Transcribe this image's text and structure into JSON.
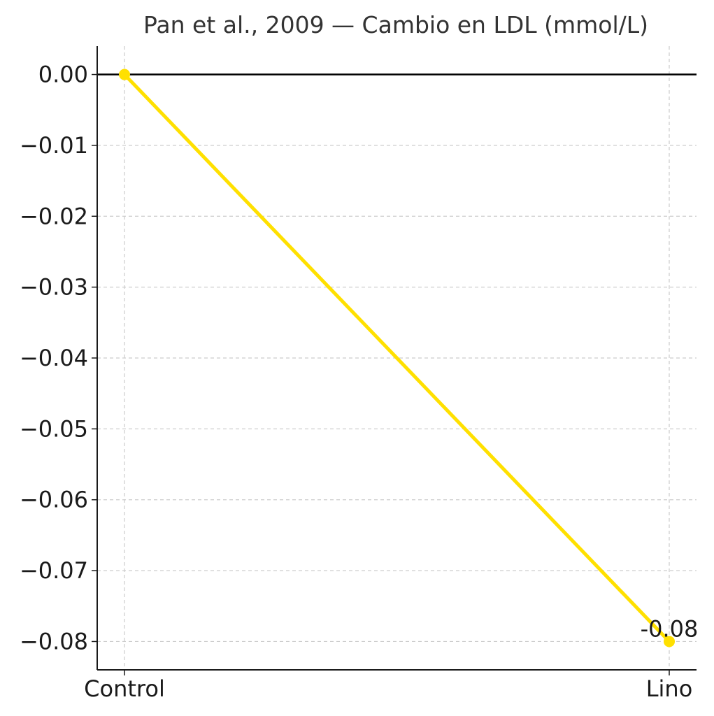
{
  "chart_data": {
    "type": "line",
    "title": "Pan et al., 2009 — Cambio en LDL (mmol/L)",
    "xlabel": "",
    "ylabel": "",
    "categories": [
      "Control",
      "Lino"
    ],
    "series": [
      {
        "values": [
          0.0,
          -0.08
        ],
        "color": "#FFE000"
      }
    ],
    "data_labels": [
      {
        "index": 1,
        "text": "-0.08"
      }
    ],
    "ylim": [
      -0.084,
      0.004
    ],
    "yticks": [
      0.0,
      -0.01,
      -0.02,
      -0.03,
      -0.04,
      -0.05,
      -0.06,
      -0.07,
      -0.08
    ],
    "ytick_labels": [
      "0.00",
      "−0.01",
      "−0.02",
      "−0.03",
      "−0.04",
      "−0.05",
      "−0.06",
      "−0.07",
      "−0.08"
    ],
    "reference_line": 0.0,
    "grid": true,
    "legend": "none"
  }
}
